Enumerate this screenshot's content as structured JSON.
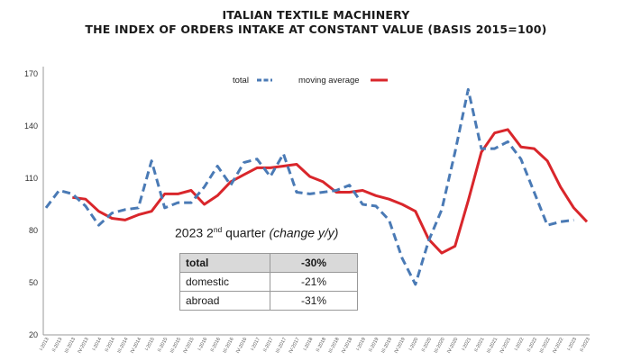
{
  "chart_data": {
    "type": "line",
    "title": "ITALIAN TEXTILE MACHINERY",
    "subtitle": "THE INDEX OF ORDERS INTAKE AT CONSTANT VALUE (BASIS 2015=100)",
    "xlabel": "",
    "ylabel": "",
    "ylim": [
      20,
      170
    ],
    "yticks": [
      20,
      50,
      80,
      110,
      140,
      170
    ],
    "grid": false,
    "legend_position": "top-center",
    "categories": [
      "I-2013",
      "II-2013",
      "III-2013",
      "IV-2013",
      "I-2014",
      "II-2014",
      "III-2014",
      "IV-2014",
      "I-2015",
      "II-2015",
      "III-2015",
      "IV-2015",
      "I-2016",
      "II-2016",
      "III-2016",
      "IV-2016",
      "I-2017",
      "II-2017",
      "III-2017",
      "IV-2017",
      "I-2018",
      "II-2018",
      "III-2018",
      "IV-2018",
      "I-2019",
      "II-2019",
      "III-2019",
      "IV-2019",
      "I-2020",
      "II-2020",
      "III-2020",
      "IV-2020",
      "I-2021",
      "II-2021",
      "III-2021",
      "IV-2021",
      "I-2022",
      "II-2022",
      "III-2022",
      "IV-2022",
      "I-2023",
      "II-2023"
    ],
    "series": [
      {
        "name": "total",
        "style": "dashed",
        "color": "#4a7ab5",
        "values": [
          93,
          103,
          101,
          94,
          83,
          90,
          92,
          93,
          120,
          93,
          96,
          96,
          105,
          117,
          106,
          119,
          121,
          111,
          124,
          102,
          101,
          102,
          103,
          106,
          95,
          94,
          86,
          64,
          49,
          74,
          92,
          125,
          161,
          127,
          127,
          131,
          121,
          102,
          83,
          85,
          86,
          null
        ]
      },
      {
        "name": "moving average",
        "style": "solid",
        "color": "#d9262b",
        "values": [
          null,
          null,
          99,
          98,
          91,
          87,
          86,
          89,
          91,
          101,
          101,
          103,
          95,
          100,
          108,
          112,
          116,
          116,
          117,
          118,
          111,
          108,
          102,
          102,
          103,
          100,
          98,
          95,
          91,
          75,
          67,
          71,
          97,
          125,
          136,
          138,
          128,
          127,
          120,
          105,
          93,
          85
        ]
      }
    ]
  },
  "legend": {
    "total_label": "total",
    "moving_average_label": "moving average"
  },
  "inset": {
    "heading_prefix": "2023 2",
    "heading_sup": "nd",
    "heading_mid": " quarter ",
    "heading_italic": "(change y/y)",
    "table": {
      "rows": [
        {
          "label": "total",
          "value": "-30%"
        },
        {
          "label": "domestic",
          "value": "-21%"
        },
        {
          "label": "abroad",
          "value": "-31%"
        }
      ]
    }
  }
}
